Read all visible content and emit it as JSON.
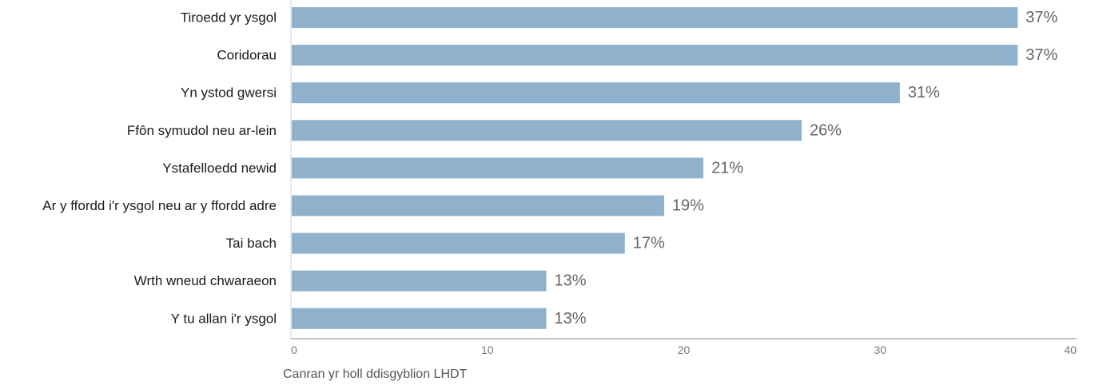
{
  "chart_data": {
    "type": "bar",
    "orientation": "horizontal",
    "categories": [
      "Tiroedd yr ysgol",
      "Coridorau",
      "Yn ystod gwersi",
      "Ffôn symudol neu ar-lein",
      "Ystafelloedd newid",
      "Ar y ffordd i'r ysgol neu ar y ffordd adre",
      "Tai bach",
      "Wrth wneud chwaraeon",
      "Y tu allan i'r ysgol"
    ],
    "values": [
      37,
      37,
      31,
      26,
      21,
      19,
      17,
      13,
      13
    ],
    "value_labels": [
      "37%",
      "37%",
      "31%",
      "26%",
      "21%",
      "19%",
      "17%",
      "13%",
      "13%"
    ],
    "xlabel": "Canran yr holl ddisgyblion LHDT",
    "xlim": [
      0,
      40
    ],
    "xticks": [
      0,
      10,
      20,
      30,
      40
    ],
    "grid": false,
    "bar_color": "#8fb1cc"
  }
}
